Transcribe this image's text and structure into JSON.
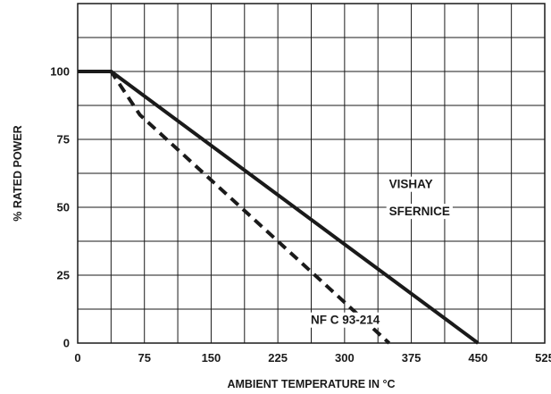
{
  "chart_data": {
    "type": "line",
    "title": "",
    "xlabel": "AMBIENT TEMPERATURE IN °C",
    "ylabel": "% RATED POWER",
    "xlim": [
      0,
      525
    ],
    "ylim": [
      0,
      125
    ],
    "x_ticks": [
      "0",
      "75",
      "150",
      "225",
      "300",
      "375",
      "450",
      "525"
    ],
    "y_ticks": [
      "0",
      "25",
      "50",
      "75",
      "100"
    ],
    "grid": true,
    "series": [
      {
        "name": "VISHAY SFERNICE",
        "style": "solid",
        "points": [
          [
            0,
            100
          ],
          [
            37.5,
            100
          ],
          [
            450,
            0
          ]
        ]
      },
      {
        "name": "NF C 93-214",
        "style": "dashed",
        "points": [
          [
            0,
            100
          ],
          [
            37.5,
            100
          ],
          [
            70,
            84
          ],
          [
            350,
            0
          ]
        ]
      }
    ],
    "annotations": [
      {
        "text": "VISHAY",
        "x": 350,
        "y": 57
      },
      {
        "text": "SFERNICE",
        "x": 350,
        "y": 47
      },
      {
        "text": "NF C 93-214",
        "x": 262,
        "y": 7
      }
    ]
  },
  "colors": {
    "line": "#1a1a1a",
    "grid": "#1a1a1a",
    "background": "#ffffff"
  }
}
